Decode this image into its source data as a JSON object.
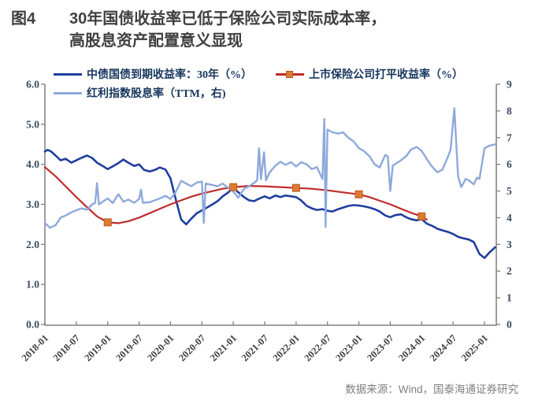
{
  "figure": {
    "label": "图4",
    "title_line1": "30年国债收益率已低于保险公司实际成本率，",
    "title_line2": "高股息资产配置意义显现",
    "source": "数据来源：Wind，国泰海通证券研究"
  },
  "colors": {
    "bond_line": "#1f3e9e",
    "insurer_line": "#c02c2c",
    "insurer_marker": "#dd7b33",
    "dividend_line": "#8ea9db",
    "axis": "#7f7f7f",
    "y_label": "#3b4a63",
    "x_label": "#404040",
    "title": "#3f3f3f",
    "source_text": "#808080"
  },
  "legend": {
    "items": [
      {
        "label": "中债国债到期收益率：30年（%）",
        "swatch": "navy-line"
      },
      {
        "label": "上市保险公司打平收益率（%）",
        "swatch": "red-line-square"
      },
      {
        "label": "红利指数股息率（TTM，右)",
        "swatch": "lightblue-line"
      }
    ]
  },
  "chart_data": {
    "type": "line",
    "title": "30年国债收益率已低于保险公司实际成本率，高股息资产配置意义显现",
    "x_axis": {
      "start_year": 2018.0,
      "tick_step_years": 0.5,
      "tick_labels": [
        "2018-01",
        "2018-07",
        "2019-01",
        "2019-07",
        "2020-01",
        "2020-07",
        "2021-01",
        "2021-07",
        "2022-01",
        "2022-07",
        "2023-01",
        "2023-07",
        "2024-01",
        "2024-07",
        "2025-01"
      ]
    },
    "y_axis_left": {
      "min": 0,
      "max": 6,
      "tick_labels": [
        "0.0",
        "1.0",
        "2.0",
        "3.0",
        "4.0",
        "5.0",
        "6.0"
      ]
    },
    "y_axis_right": {
      "min": 0,
      "max": 9,
      "tick_labels": [
        "0",
        "1",
        "2",
        "3",
        "4",
        "5",
        "6",
        "7",
        "8",
        "9"
      ]
    },
    "grid": false,
    "legend_position": "top",
    "series": [
      {
        "name": "中债国债到期收益率：30年（%）",
        "axis": "left",
        "color": "#1f3e9e",
        "width": 2.6,
        "points": [
          [
            2018.0,
            4.32
          ],
          [
            2018.04,
            4.36
          ],
          [
            2018.09,
            4.33
          ],
          [
            2018.17,
            4.22
          ],
          [
            2018.25,
            4.1
          ],
          [
            2018.33,
            4.14
          ],
          [
            2018.42,
            4.04
          ],
          [
            2018.5,
            4.1
          ],
          [
            2018.58,
            4.16
          ],
          [
            2018.67,
            4.22
          ],
          [
            2018.75,
            4.16
          ],
          [
            2018.83,
            4.04
          ],
          [
            2018.92,
            3.96
          ],
          [
            2019.0,
            3.88
          ],
          [
            2019.08,
            3.95
          ],
          [
            2019.17,
            4.03
          ],
          [
            2019.25,
            4.12
          ],
          [
            2019.33,
            4.04
          ],
          [
            2019.42,
            3.96
          ],
          [
            2019.5,
            4.0
          ],
          [
            2019.58,
            3.86
          ],
          [
            2019.67,
            3.82
          ],
          [
            2019.75,
            3.86
          ],
          [
            2019.83,
            3.92
          ],
          [
            2019.92,
            3.87
          ],
          [
            2020.0,
            3.65
          ],
          [
            2020.08,
            3.15
          ],
          [
            2020.17,
            2.62
          ],
          [
            2020.25,
            2.5
          ],
          [
            2020.33,
            2.64
          ],
          [
            2020.42,
            2.78
          ],
          [
            2020.5,
            2.85
          ],
          [
            2020.58,
            2.92
          ],
          [
            2020.67,
            3.0
          ],
          [
            2020.75,
            3.08
          ],
          [
            2020.83,
            3.2
          ],
          [
            2020.92,
            3.3
          ],
          [
            2021.0,
            3.42
          ],
          [
            2021.08,
            3.3
          ],
          [
            2021.17,
            3.18
          ],
          [
            2021.25,
            3.1
          ],
          [
            2021.33,
            3.08
          ],
          [
            2021.42,
            3.15
          ],
          [
            2021.5,
            3.2
          ],
          [
            2021.58,
            3.15
          ],
          [
            2021.67,
            3.22
          ],
          [
            2021.75,
            3.18
          ],
          [
            2021.83,
            3.22
          ],
          [
            2021.92,
            3.2
          ],
          [
            2022.0,
            3.18
          ],
          [
            2022.08,
            3.1
          ],
          [
            2022.17,
            2.96
          ],
          [
            2022.25,
            2.9
          ],
          [
            2022.33,
            2.86
          ],
          [
            2022.42,
            2.88
          ],
          [
            2022.5,
            2.84
          ],
          [
            2022.58,
            2.82
          ],
          [
            2022.67,
            2.88
          ],
          [
            2022.75,
            2.92
          ],
          [
            2022.83,
            2.96
          ],
          [
            2022.92,
            2.98
          ],
          [
            2023.0,
            2.97
          ],
          [
            2023.08,
            2.95
          ],
          [
            2023.17,
            2.92
          ],
          [
            2023.25,
            2.88
          ],
          [
            2023.33,
            2.82
          ],
          [
            2023.42,
            2.72
          ],
          [
            2023.5,
            2.68
          ],
          [
            2023.58,
            2.73
          ],
          [
            2023.67,
            2.75
          ],
          [
            2023.75,
            2.68
          ],
          [
            2023.83,
            2.63
          ],
          [
            2023.92,
            2.6
          ],
          [
            2024.0,
            2.63
          ],
          [
            2024.08,
            2.52
          ],
          [
            2024.17,
            2.46
          ],
          [
            2024.25,
            2.39
          ],
          [
            2024.33,
            2.35
          ],
          [
            2024.42,
            2.31
          ],
          [
            2024.5,
            2.26
          ],
          [
            2024.58,
            2.19
          ],
          [
            2024.67,
            2.15
          ],
          [
            2024.75,
            2.12
          ],
          [
            2024.83,
            2.06
          ],
          [
            2024.92,
            1.76
          ],
          [
            2025.0,
            1.66
          ],
          [
            2025.08,
            1.8
          ],
          [
            2025.17,
            1.93
          ]
        ]
      },
      {
        "name": "上市保险公司打平收益率（%）",
        "axis": "left",
        "color": "#c02c2c",
        "width": 2.2,
        "marker_color": "#dd7b33",
        "marker_points": [
          [
            2019.0,
            2.55
          ],
          [
            2021.0,
            3.43
          ],
          [
            2022.0,
            3.41
          ],
          [
            2023.0,
            3.25
          ],
          [
            2024.0,
            2.7
          ]
        ],
        "points": [
          [
            2018.0,
            3.93
          ],
          [
            2018.17,
            3.7
          ],
          [
            2018.33,
            3.45
          ],
          [
            2018.5,
            3.18
          ],
          [
            2018.67,
            2.93
          ],
          [
            2018.83,
            2.7
          ],
          [
            2019.0,
            2.55
          ],
          [
            2019.17,
            2.53
          ],
          [
            2019.33,
            2.58
          ],
          [
            2019.5,
            2.67
          ],
          [
            2019.67,
            2.78
          ],
          [
            2019.83,
            2.89
          ],
          [
            2020.0,
            3.0
          ],
          [
            2020.17,
            3.1
          ],
          [
            2020.33,
            3.19
          ],
          [
            2020.5,
            3.27
          ],
          [
            2020.67,
            3.33
          ],
          [
            2020.83,
            3.39
          ],
          [
            2021.0,
            3.43
          ],
          [
            2021.25,
            3.46
          ],
          [
            2021.5,
            3.45
          ],
          [
            2021.75,
            3.43
          ],
          [
            2022.0,
            3.41
          ],
          [
            2022.25,
            3.39
          ],
          [
            2022.5,
            3.35
          ],
          [
            2022.75,
            3.3
          ],
          [
            2023.0,
            3.25
          ],
          [
            2023.17,
            3.18
          ],
          [
            2023.33,
            3.09
          ],
          [
            2023.5,
            3.0
          ],
          [
            2023.67,
            2.89
          ],
          [
            2023.83,
            2.79
          ],
          [
            2024.0,
            2.7
          ],
          [
            2024.08,
            2.62
          ]
        ]
      },
      {
        "name": "红利指数股息率（TTM，右)",
        "axis": "right",
        "color": "#8ea9db",
        "width": 2.4,
        "points": [
          [
            2018.0,
            3.8
          ],
          [
            2018.08,
            3.62
          ],
          [
            2018.17,
            3.72
          ],
          [
            2018.25,
            4.0
          ],
          [
            2018.33,
            4.08
          ],
          [
            2018.42,
            4.2
          ],
          [
            2018.5,
            4.28
          ],
          [
            2018.58,
            4.35
          ],
          [
            2018.67,
            4.3
          ],
          [
            2018.75,
            4.5
          ],
          [
            2018.8,
            4.55
          ],
          [
            2018.83,
            5.3
          ],
          [
            2018.86,
            4.5
          ],
          [
            2018.92,
            4.6
          ],
          [
            2019.0,
            4.72
          ],
          [
            2019.08,
            4.55
          ],
          [
            2019.17,
            4.88
          ],
          [
            2019.25,
            4.6
          ],
          [
            2019.33,
            4.68
          ],
          [
            2019.42,
            4.56
          ],
          [
            2019.5,
            4.7
          ],
          [
            2019.53,
            5.05
          ],
          [
            2019.56,
            4.56
          ],
          [
            2019.67,
            4.58
          ],
          [
            2019.75,
            4.65
          ],
          [
            2019.83,
            4.72
          ],
          [
            2019.92,
            4.82
          ],
          [
            2020.0,
            4.7
          ],
          [
            2020.08,
            4.95
          ],
          [
            2020.17,
            5.38
          ],
          [
            2020.25,
            5.28
          ],
          [
            2020.33,
            5.18
          ],
          [
            2020.42,
            5.32
          ],
          [
            2020.5,
            5.35
          ],
          [
            2020.53,
            3.8
          ],
          [
            2020.56,
            5.28
          ],
          [
            2020.67,
            5.22
          ],
          [
            2020.75,
            5.18
          ],
          [
            2020.83,
            5.28
          ],
          [
            2020.92,
            5.12
          ],
          [
            2021.0,
            4.98
          ],
          [
            2021.08,
            4.75
          ],
          [
            2021.17,
            5.08
          ],
          [
            2021.25,
            5.18
          ],
          [
            2021.33,
            5.3
          ],
          [
            2021.38,
            5.4
          ],
          [
            2021.41,
            6.6
          ],
          [
            2021.44,
            5.45
          ],
          [
            2021.49,
            6.45
          ],
          [
            2021.52,
            5.4
          ],
          [
            2021.58,
            5.7
          ],
          [
            2021.67,
            5.95
          ],
          [
            2021.75,
            6.1
          ],
          [
            2021.83,
            5.98
          ],
          [
            2021.92,
            6.08
          ],
          [
            2022.0,
            5.92
          ],
          [
            2022.08,
            6.08
          ],
          [
            2022.17,
            6.0
          ],
          [
            2022.25,
            5.82
          ],
          [
            2022.33,
            5.9
          ],
          [
            2022.42,
            5.45
          ],
          [
            2022.45,
            7.7
          ],
          [
            2022.47,
            3.65
          ],
          [
            2022.5,
            7.3
          ],
          [
            2022.58,
            7.2
          ],
          [
            2022.67,
            7.15
          ],
          [
            2022.75,
            7.2
          ],
          [
            2022.83,
            7.0
          ],
          [
            2022.92,
            6.85
          ],
          [
            2023.0,
            6.6
          ],
          [
            2023.08,
            6.5
          ],
          [
            2023.17,
            6.3
          ],
          [
            2023.25,
            6.0
          ],
          [
            2023.33,
            5.88
          ],
          [
            2023.42,
            6.35
          ],
          [
            2023.46,
            6.3
          ],
          [
            2023.5,
            5.0
          ],
          [
            2023.54,
            5.95
          ],
          [
            2023.67,
            6.15
          ],
          [
            2023.75,
            6.3
          ],
          [
            2023.83,
            6.55
          ],
          [
            2023.92,
            6.65
          ],
          [
            2024.0,
            6.5
          ],
          [
            2024.08,
            6.2
          ],
          [
            2024.17,
            5.9
          ],
          [
            2024.25,
            5.7
          ],
          [
            2024.33,
            5.8
          ],
          [
            2024.42,
            6.3
          ],
          [
            2024.46,
            6.55
          ],
          [
            2024.52,
            8.1
          ],
          [
            2024.58,
            5.55
          ],
          [
            2024.63,
            5.15
          ],
          [
            2024.7,
            5.45
          ],
          [
            2024.75,
            5.4
          ],
          [
            2024.83,
            5.25
          ],
          [
            2024.88,
            5.5
          ],
          [
            2024.92,
            5.45
          ],
          [
            2025.0,
            6.6
          ],
          [
            2025.08,
            6.7
          ],
          [
            2025.17,
            6.75
          ]
        ]
      }
    ]
  }
}
